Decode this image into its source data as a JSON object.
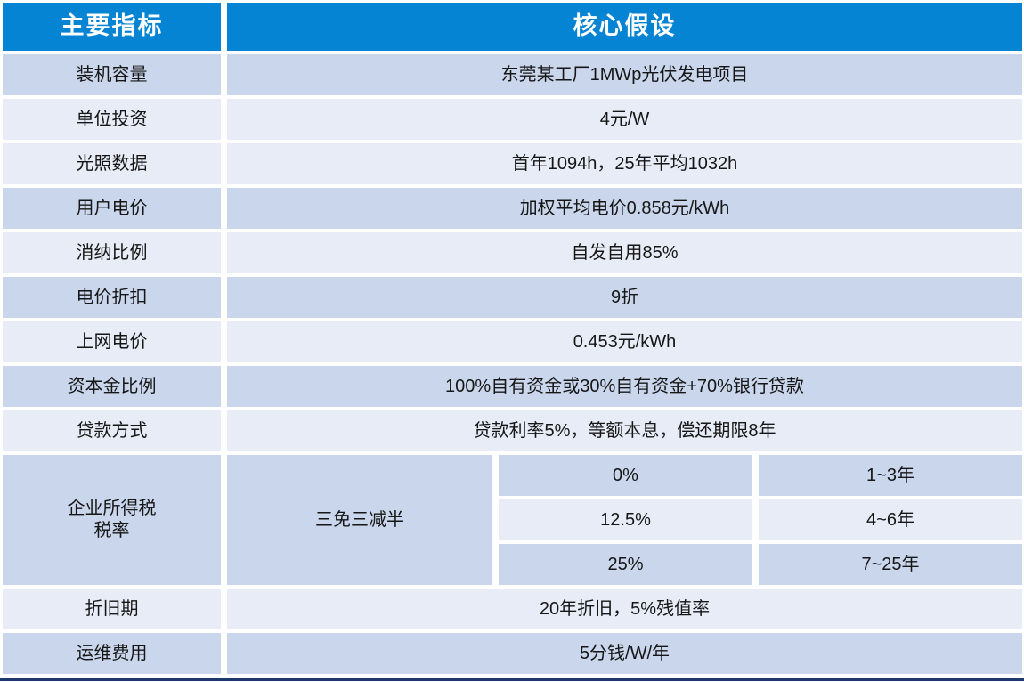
{
  "colors": {
    "header_bg": "#0584d4",
    "band_dark": "#c9d6ec",
    "band_light": "#e7ecf6",
    "bottom_bar": "#1e3a68",
    "header_text": "#ffffff",
    "body_text": "#161616"
  },
  "table": {
    "header": {
      "indicator_col": "主要指标",
      "assumption_col": "核心假设"
    },
    "rows": [
      {
        "label": "装机容量",
        "value": "东莞某工厂1MWp光伏发电项目",
        "band": "dark"
      },
      {
        "label": "单位投资",
        "value": "4元/W",
        "band": "light"
      },
      {
        "label": "光照数据",
        "value": "首年1094h，25年平均1032h",
        "band": "light"
      },
      {
        "label": "用户电价",
        "value": "加权平均电价0.858元/kWh",
        "band": "dark"
      },
      {
        "label": "消纳比例",
        "value": "自发自用85%",
        "band": "light"
      },
      {
        "label": "电价折扣",
        "value": "9折",
        "band": "dark"
      },
      {
        "label": "上网电价",
        "value": "0.453元/kWh",
        "band": "light"
      },
      {
        "label": "资本金比例",
        "value": "100%自有资金或30%自有资金+70%银行贷款",
        "band": "dark"
      },
      {
        "label": "贷款方式",
        "value": "贷款利率5%，等额本息，偿还期限8年",
        "band": "light"
      }
    ],
    "tax_section": {
      "label_lines": [
        "企业所得税",
        "税率"
      ],
      "policy": "三免三减半",
      "brackets": [
        {
          "rate": "0%",
          "period": "1~3年",
          "band": "dark"
        },
        {
          "rate": "12.5%",
          "period": "4~6年",
          "band": "light"
        },
        {
          "rate": "25%",
          "period": "7~25年",
          "band": "dark"
        }
      ]
    },
    "rows_after_tax": [
      {
        "label": "折旧期",
        "value": "20年折旧，5%残值率",
        "band": "light"
      },
      {
        "label": "运维费用",
        "value": "5分钱/W/年",
        "band": "dark"
      }
    ]
  }
}
